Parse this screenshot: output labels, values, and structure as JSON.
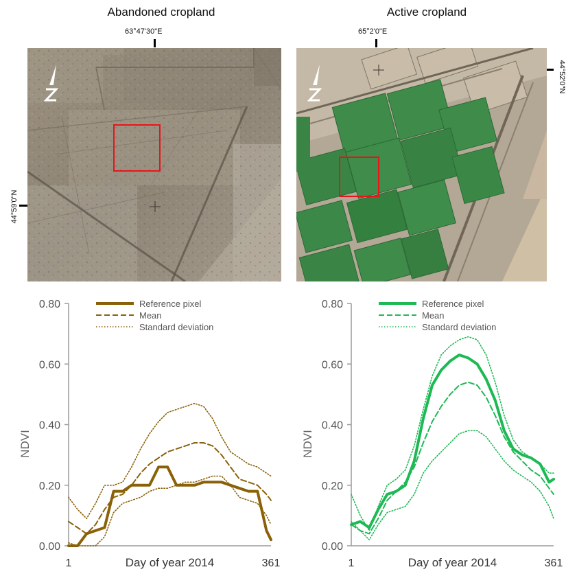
{
  "panels": [
    {
      "title": "Abandoned cropland",
      "lon_label": "63°47'30\"E",
      "lat_label": "44°59'0\"N"
    },
    {
      "title": "Active cropland",
      "lon_label": "65°2'0\"E",
      "lat_label": "44°52'0\"N"
    }
  ],
  "north_arrow": "N",
  "colors": {
    "abandoned": "#8a6108",
    "active": "#1db954",
    "highlight_box": "#e8141a"
  },
  "chart_data": [
    {
      "type": "line",
      "title": "",
      "xlabel": "Day of year 2014",
      "ylabel": "NDVI",
      "x_tick_labels": [
        "1",
        "361"
      ],
      "y_tick_labels": [
        "0.00",
        "0.20",
        "0.40",
        "0.60",
        "0.80"
      ],
      "xlim": [
        1,
        361
      ],
      "ylim": [
        0,
        0.8
      ],
      "legend": "top-right",
      "color": "#8a6108",
      "series": [
        {
          "name": "Reference  pixel",
          "style": "solid",
          "x": [
            1,
            17,
            33,
            49,
            65,
            81,
            97,
            113,
            129,
            145,
            161,
            177,
            193,
            209,
            225,
            241,
            257,
            273,
            289,
            305,
            321,
            337,
            353,
            361
          ],
          "values": [
            0.0,
            0.0,
            0.04,
            0.05,
            0.06,
            0.18,
            0.18,
            0.2,
            0.2,
            0.2,
            0.26,
            0.26,
            0.2,
            0.2,
            0.2,
            0.21,
            0.21,
            0.21,
            0.2,
            0.19,
            0.18,
            0.18,
            0.05,
            0.02
          ]
        },
        {
          "name": "Mean",
          "style": "dashed",
          "x": [
            1,
            17,
            33,
            49,
            65,
            81,
            97,
            113,
            129,
            145,
            161,
            177,
            193,
            209,
            225,
            241,
            257,
            273,
            289,
            305,
            321,
            337,
            353,
            361
          ],
          "values": [
            0.08,
            0.06,
            0.04,
            0.07,
            0.12,
            0.16,
            0.17,
            0.2,
            0.24,
            0.27,
            0.29,
            0.31,
            0.32,
            0.33,
            0.34,
            0.34,
            0.33,
            0.3,
            0.26,
            0.22,
            0.21,
            0.2,
            0.17,
            0.15
          ]
        },
        {
          "name": "Standard deviation",
          "style": "dotted",
          "x": [
            1,
            17,
            33,
            49,
            65,
            81,
            97,
            113,
            129,
            145,
            161,
            177,
            193,
            209,
            225,
            241,
            257,
            273,
            289,
            305,
            321,
            337,
            353,
            361
          ],
          "values": [
            0.16,
            0.12,
            0.09,
            0.14,
            0.2,
            0.2,
            0.21,
            0.26,
            0.32,
            0.37,
            0.41,
            0.44,
            0.45,
            0.46,
            0.47,
            0.46,
            0.42,
            0.36,
            0.31,
            0.29,
            0.27,
            0.26,
            0.24,
            0.23
          ]
        },
        {
          "name": "",
          "style": "dotted",
          "x": [
            1,
            17,
            33,
            49,
            65,
            81,
            97,
            113,
            129,
            145,
            161,
            177,
            193,
            209,
            225,
            241,
            257,
            273,
            289,
            305,
            321,
            337,
            353,
            361
          ],
          "values": [
            0.01,
            0.0,
            0.0,
            0.0,
            0.03,
            0.11,
            0.14,
            0.15,
            0.16,
            0.18,
            0.19,
            0.19,
            0.2,
            0.21,
            0.21,
            0.22,
            0.23,
            0.23,
            0.2,
            0.16,
            0.15,
            0.14,
            0.1,
            0.07
          ]
        }
      ]
    },
    {
      "type": "line",
      "title": "",
      "xlabel": "Day of year 2014",
      "ylabel": "NDVI",
      "x_tick_labels": [
        "1",
        "361"
      ],
      "y_tick_labels": [
        "0.00",
        "0.20",
        "0.40",
        "0.60",
        "0.80"
      ],
      "xlim": [
        1,
        361
      ],
      "ylim": [
        0,
        0.8
      ],
      "legend": "top-right",
      "color": "#1db954",
      "series": [
        {
          "name": "Reference  pixel",
          "style": "solid",
          "x": [
            1,
            17,
            33,
            49,
            65,
            81,
            97,
            113,
            129,
            145,
            161,
            177,
            193,
            209,
            225,
            241,
            257,
            273,
            289,
            305,
            321,
            337,
            353,
            361
          ],
          "values": [
            0.07,
            0.08,
            0.06,
            0.12,
            0.17,
            0.18,
            0.2,
            0.28,
            0.42,
            0.53,
            0.58,
            0.61,
            0.63,
            0.62,
            0.6,
            0.55,
            0.48,
            0.38,
            0.32,
            0.3,
            0.29,
            0.27,
            0.21,
            0.22
          ]
        },
        {
          "name": "Mean",
          "style": "dashed",
          "x": [
            1,
            17,
            33,
            49,
            65,
            81,
            97,
            113,
            129,
            145,
            161,
            177,
            193,
            209,
            225,
            241,
            257,
            273,
            289,
            305,
            321,
            337,
            353,
            361
          ],
          "values": [
            0.07,
            0.05,
            0.04,
            0.09,
            0.15,
            0.18,
            0.21,
            0.26,
            0.34,
            0.41,
            0.46,
            0.5,
            0.53,
            0.54,
            0.53,
            0.49,
            0.43,
            0.36,
            0.31,
            0.28,
            0.25,
            0.23,
            0.19,
            0.17
          ]
        },
        {
          "name": "Standard deviation",
          "style": "dotted",
          "x": [
            1,
            17,
            33,
            49,
            65,
            81,
            97,
            113,
            129,
            145,
            161,
            177,
            193,
            209,
            225,
            241,
            257,
            273,
            289,
            305,
            321,
            337,
            353,
            361
          ],
          "values": [
            0.17,
            0.1,
            0.05,
            0.13,
            0.2,
            0.22,
            0.25,
            0.33,
            0.45,
            0.56,
            0.63,
            0.66,
            0.68,
            0.69,
            0.68,
            0.63,
            0.54,
            0.43,
            0.35,
            0.31,
            0.29,
            0.27,
            0.24,
            0.24
          ]
        },
        {
          "name": "",
          "style": "dotted",
          "x": [
            1,
            17,
            33,
            49,
            65,
            81,
            97,
            113,
            129,
            145,
            161,
            177,
            193,
            209,
            225,
            241,
            257,
            273,
            289,
            305,
            321,
            337,
            353,
            361
          ],
          "values": [
            0.08,
            0.05,
            0.02,
            0.07,
            0.11,
            0.12,
            0.13,
            0.17,
            0.24,
            0.28,
            0.31,
            0.34,
            0.37,
            0.38,
            0.38,
            0.36,
            0.32,
            0.28,
            0.25,
            0.23,
            0.21,
            0.18,
            0.13,
            0.09
          ]
        }
      ]
    }
  ]
}
